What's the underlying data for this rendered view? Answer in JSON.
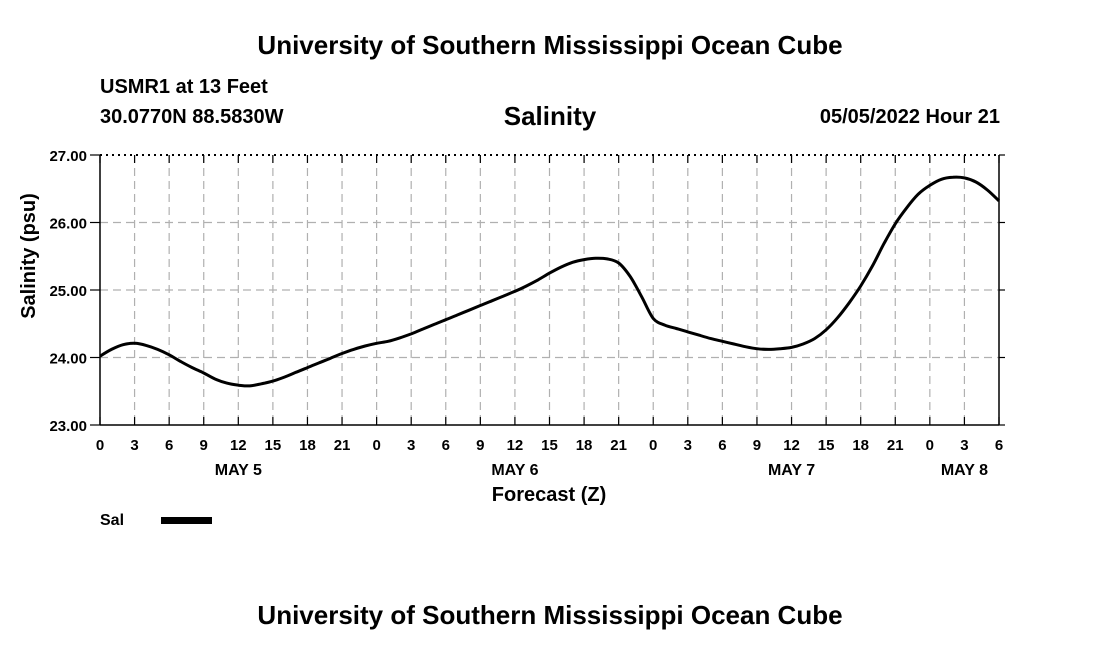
{
  "header": {
    "title": "University of Southern Mississippi Ocean Cube",
    "station": "USMR1 at 13 Feet",
    "coords": "30.0770N  88.5830W",
    "datetime": "05/05/2022 Hour 21"
  },
  "footer": {
    "title": "University of Southern Mississippi Ocean Cube"
  },
  "chart_data": {
    "type": "line",
    "title": "Salinity",
    "xlabel": "Forecast (Z)",
    "ylabel": "Salinity (psu)",
    "ylim": [
      23.0,
      27.0
    ],
    "xlim": [
      0,
      78
    ],
    "yticks": [
      23.0,
      24.0,
      25.0,
      26.0,
      27.0
    ],
    "ytick_labels": [
      "23.00",
      "24.00",
      "25.00",
      "26.00",
      "27.00"
    ],
    "xtick_labels": [
      "0",
      "3",
      "6",
      "9",
      "12",
      "15",
      "18",
      "21",
      "0",
      "3",
      "6",
      "9",
      "12",
      "15",
      "18",
      "21",
      "0",
      "3",
      "6",
      "9",
      "12",
      "15",
      "18",
      "21",
      "0",
      "3",
      "6"
    ],
    "day_labels": [
      {
        "label": "MAY 5",
        "hour": 12
      },
      {
        "label": "MAY 6",
        "hour": 36
      },
      {
        "label": "MAY 7",
        "hour": 60
      },
      {
        "label": "MAY 8",
        "hour": 75
      }
    ],
    "grid": true,
    "legend": {
      "label": "Sal",
      "position": "bottom-left"
    },
    "series": [
      {
        "name": "Sal",
        "x": [
          0,
          1,
          2,
          3,
          4,
          5,
          6,
          7,
          8,
          9,
          10,
          11,
          12,
          13,
          14,
          15,
          16,
          17,
          18,
          19,
          20,
          21,
          22,
          23,
          24,
          25,
          26,
          27,
          28,
          29,
          30,
          31,
          32,
          33,
          34,
          35,
          36,
          37,
          38,
          39,
          40,
          41,
          42,
          43,
          44,
          45,
          46,
          47,
          48,
          49,
          50,
          51,
          52,
          53,
          54,
          55,
          56,
          57,
          58,
          59,
          60,
          61,
          62,
          63,
          64,
          65,
          66,
          67,
          68,
          69,
          70,
          71,
          72,
          73,
          74,
          75,
          76,
          77,
          78
        ],
        "values": [
          24.02,
          24.12,
          24.19,
          24.21,
          24.18,
          24.12,
          24.04,
          23.94,
          23.85,
          23.77,
          23.68,
          23.62,
          23.59,
          23.58,
          23.61,
          23.65,
          23.71,
          23.78,
          23.85,
          23.92,
          23.99,
          24.06,
          24.12,
          24.17,
          24.21,
          24.24,
          24.29,
          24.35,
          24.42,
          24.49,
          24.56,
          24.63,
          24.7,
          24.77,
          24.84,
          24.91,
          24.98,
          25.06,
          25.15,
          25.25,
          25.34,
          25.41,
          25.45,
          25.47,
          25.46,
          25.4,
          25.2,
          24.9,
          24.58,
          24.48,
          24.43,
          24.38,
          24.33,
          24.28,
          24.24,
          24.2,
          24.16,
          24.13,
          24.12,
          24.13,
          24.15,
          24.2,
          24.28,
          24.41,
          24.59,
          24.81,
          25.06,
          25.35,
          25.68,
          25.98,
          26.22,
          26.42,
          26.55,
          26.64,
          26.67,
          26.66,
          26.6,
          26.48,
          26.32
        ]
      }
    ]
  }
}
